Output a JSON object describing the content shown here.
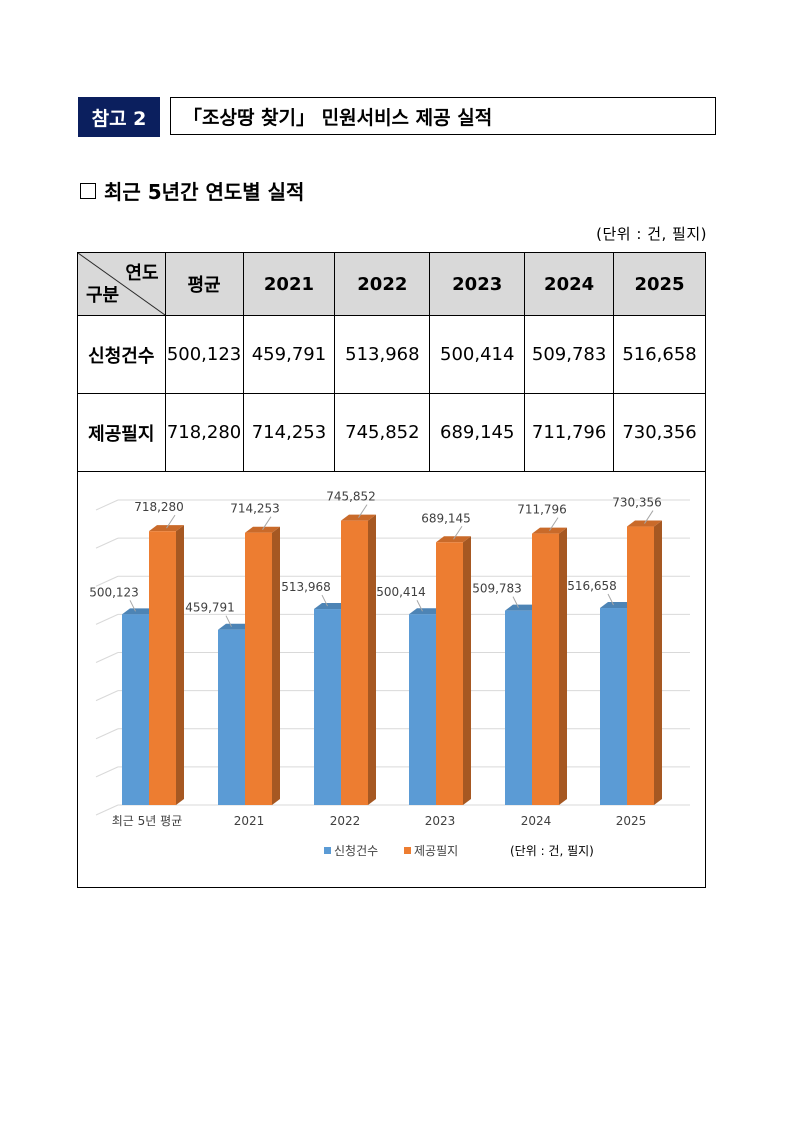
{
  "header": {
    "ref_label": "참고 2",
    "ref_title": "「조상땅 찾기」 민원서비스 제공 실적"
  },
  "section": {
    "title": "최근 5년간 연도별 실적",
    "unit": "(단위 : 건, 필지)"
  },
  "table": {
    "corner_top": "연도",
    "corner_bottom": "구분",
    "columns": [
      "평균",
      "2021",
      "2022",
      "2023",
      "2024",
      "2025"
    ],
    "rows": [
      {
        "label": "신청건수",
        "values": [
          "500,123",
          "459,791",
          "513,968",
          "500,414",
          "509,783",
          "516,658"
        ]
      },
      {
        "label": "제공필지",
        "values": [
          "718,280",
          "714,253",
          "745,852",
          "689,145",
          "711,796",
          "730,356"
        ]
      }
    ]
  },
  "chart_data": {
    "type": "bar",
    "categories": [
      "최근 5년 평균",
      "2021",
      "2022",
      "2023",
      "2024",
      "2025"
    ],
    "series": [
      {
        "name": "신청건수",
        "values": [
          500123,
          459791,
          513968,
          500414,
          509783,
          516658
        ],
        "labels": [
          "500,123",
          "459,791",
          "513,968",
          "500,414",
          "509,783",
          "516,658"
        ],
        "color": "#5b9bd5"
      },
      {
        "name": "제공필지",
        "values": [
          718280,
          714253,
          745852,
          689145,
          711796,
          730356
        ],
        "labels": [
          "718,280",
          "714,253",
          "745,852",
          "689,145",
          "711,796",
          "730,356"
        ],
        "color": "#ed7d31"
      }
    ],
    "ylim": [
      0,
      800000
    ],
    "grid": true,
    "legend_position": "bottom",
    "unit_note": "(단위 : 건, 필지)"
  }
}
